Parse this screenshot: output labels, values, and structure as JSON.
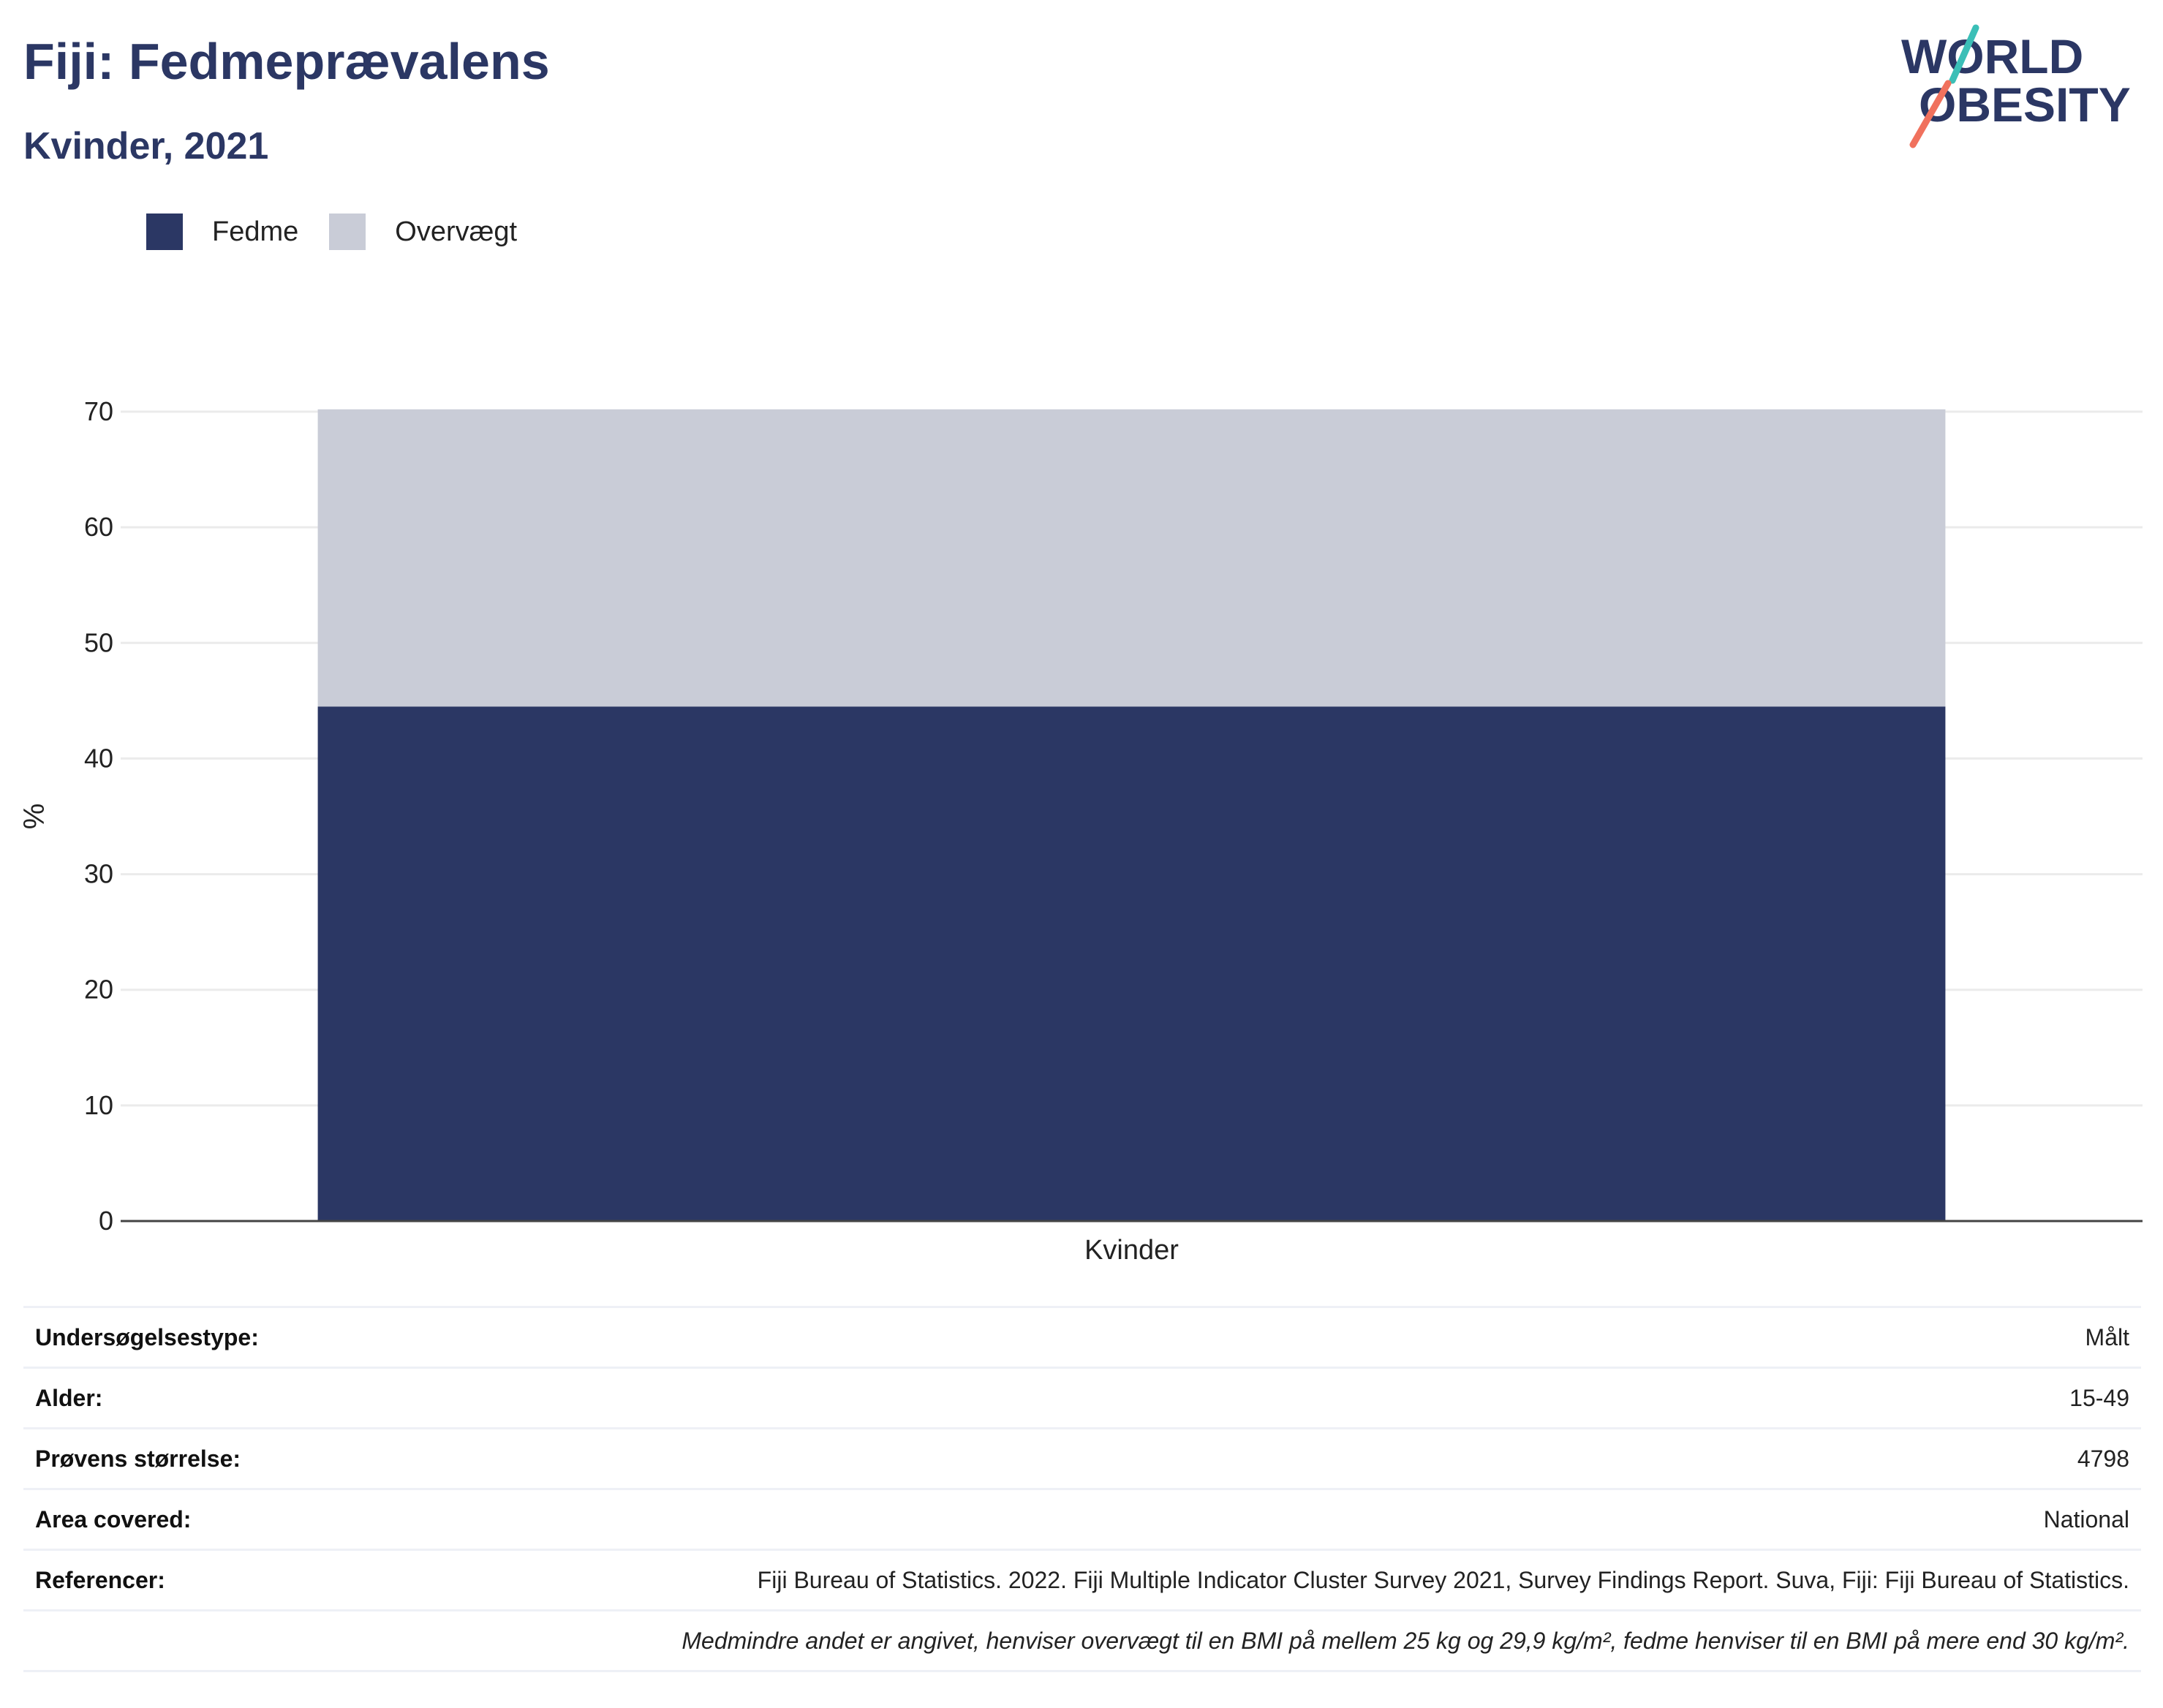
{
  "header": {
    "title": "Fiji: Fedmeprævalens",
    "subtitle": "Kvinder, 2021"
  },
  "logo": {
    "line1": "WORLD",
    "line2": "OBESITY",
    "colors": {
      "text": "#2b3764",
      "accent_teal": "#3bbfb7",
      "accent_coral": "#f0715d"
    }
  },
  "chart_data": {
    "type": "bar",
    "stacked": true,
    "categories": [
      "Kvinder"
    ],
    "series": [
      {
        "name": "Fedme",
        "values": [
          44.5
        ],
        "color": "#2b3764"
      },
      {
        "name": "Overvægt",
        "values": [
          25.7
        ],
        "color": "#c9ccd7"
      }
    ],
    "ylabel": "%",
    "xlabel": "",
    "ylim": [
      0,
      70
    ],
    "yticks": [
      0,
      10,
      20,
      30,
      40,
      50,
      60,
      70
    ],
    "grid": true,
    "legend_position": "top-left"
  },
  "info": {
    "rows": [
      {
        "label": "Undersøgelsestype:",
        "value": "Målt"
      },
      {
        "label": "Alder:",
        "value": "15-49"
      },
      {
        "label": "Prøvens størrelse:",
        "value": "4798"
      },
      {
        "label": "Area covered:",
        "value": "National"
      },
      {
        "label": "Referencer:",
        "value": "Fiji Bureau of Statistics. 2022. Fiji Multiple Indicator Cluster Survey 2021, Survey Findings Report. Suva, Fiji: Fiji Bureau of Statistics."
      }
    ],
    "note": "Medmindre andet er angivet, henviser overvægt til en BMI på mellem 25 kg og 29,9 kg/m², fedme henviser til en BMI på mere end 30 kg/m²."
  }
}
